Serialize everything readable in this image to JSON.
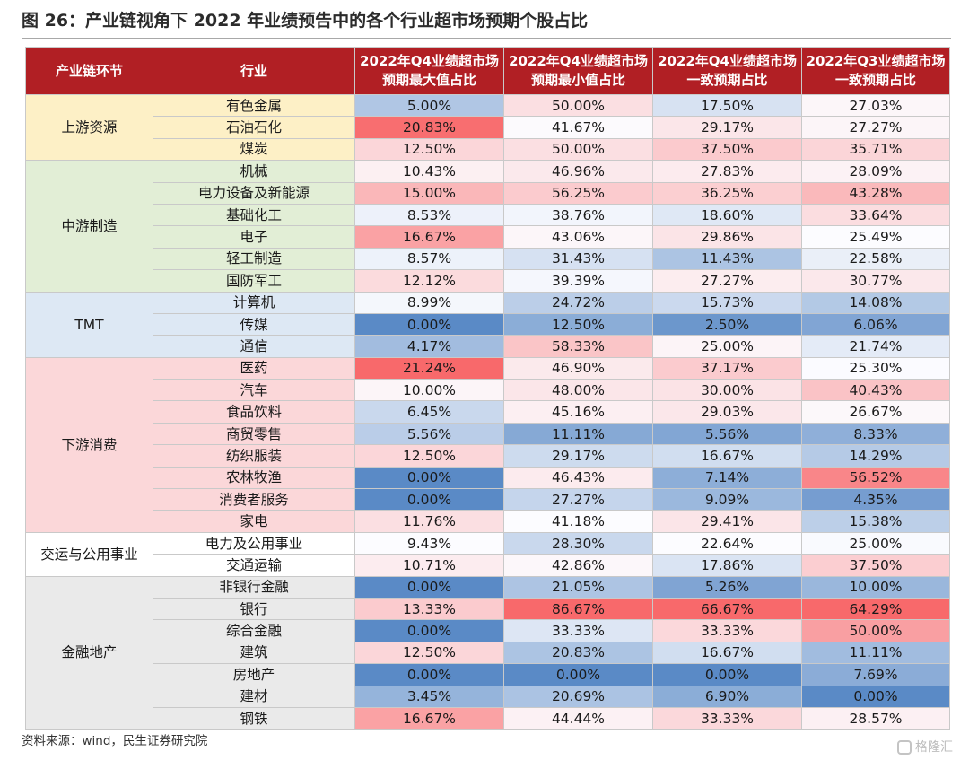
{
  "title": "图 26：产业链视角下 2022 年业绩预告中的各个行业超市场预期个股占比",
  "headers": {
    "chain": "产业链环节",
    "industry": "行业",
    "c1": "2022年Q4业绩超市场预期最大值占比",
    "c2": "2022年Q4业绩超市场预期最小值占比",
    "c3": "2022年Q4业绩超市场一致预期占比",
    "c4": "2022年Q3业绩超市场一致预期占比"
  },
  "segment_colors": {
    "上游资源": "#fdf0c6",
    "中游制造": "#e2eed6",
    "TMT": "#dde8f4",
    "下游消费": "#fbd7d9",
    "交运与公用事业": "#ffffff",
    "金融地产": "#eaeaea"
  },
  "segments": [
    {
      "name": "上游资源",
      "rows": [
        {
          "industry": "有色金属",
          "c1": "5.00%",
          "c2": "50.00%",
          "c3": "17.50%",
          "c4": "27.03%"
        },
        {
          "industry": "石油石化",
          "c1": "20.83%",
          "c2": "41.67%",
          "c3": "29.17%",
          "c4": "27.27%"
        },
        {
          "industry": "煤炭",
          "c1": "12.50%",
          "c2": "50.00%",
          "c3": "37.50%",
          "c4": "35.71%"
        }
      ]
    },
    {
      "name": "中游制造",
      "rows": [
        {
          "industry": "机械",
          "c1": "10.43%",
          "c2": "46.96%",
          "c3": "27.83%",
          "c4": "28.09%"
        },
        {
          "industry": "电力设备及新能源",
          "c1": "15.00%",
          "c2": "56.25%",
          "c3": "36.25%",
          "c4": "43.28%"
        },
        {
          "industry": "基础化工",
          "c1": "8.53%",
          "c2": "38.76%",
          "c3": "18.60%",
          "c4": "33.64%"
        },
        {
          "industry": "电子",
          "c1": "16.67%",
          "c2": "43.06%",
          "c3": "29.86%",
          "c4": "25.49%"
        },
        {
          "industry": "轻工制造",
          "c1": "8.57%",
          "c2": "31.43%",
          "c3": "11.43%",
          "c4": "22.58%"
        },
        {
          "industry": "国防军工",
          "c1": "12.12%",
          "c2": "39.39%",
          "c3": "27.27%",
          "c4": "30.77%"
        }
      ]
    },
    {
      "name": "TMT",
      "rows": [
        {
          "industry": "计算机",
          "c1": "8.99%",
          "c2": "24.72%",
          "c3": "15.73%",
          "c4": "14.08%"
        },
        {
          "industry": "传媒",
          "c1": "0.00%",
          "c2": "12.50%",
          "c3": "2.50%",
          "c4": "6.06%"
        },
        {
          "industry": "通信",
          "c1": "4.17%",
          "c2": "58.33%",
          "c3": "25.00%",
          "c4": "21.74%"
        }
      ]
    },
    {
      "name": "下游消费",
      "rows": [
        {
          "industry": "医药",
          "c1": "21.24%",
          "c2": "46.90%",
          "c3": "37.17%",
          "c4": "25.30%"
        },
        {
          "industry": "汽车",
          "c1": "10.00%",
          "c2": "48.00%",
          "c3": "30.00%",
          "c4": "40.43%"
        },
        {
          "industry": "食品饮料",
          "c1": "6.45%",
          "c2": "45.16%",
          "c3": "29.03%",
          "c4": "26.67%"
        },
        {
          "industry": "商贸零售",
          "c1": "5.56%",
          "c2": "11.11%",
          "c3": "5.56%",
          "c4": "8.33%"
        },
        {
          "industry": "纺织服装",
          "c1": "12.50%",
          "c2": "29.17%",
          "c3": "16.67%",
          "c4": "14.29%"
        },
        {
          "industry": "农林牧渔",
          "c1": "0.00%",
          "c2": "46.43%",
          "c3": "7.14%",
          "c4": "56.52%"
        },
        {
          "industry": "消费者服务",
          "c1": "0.00%",
          "c2": "27.27%",
          "c3": "9.09%",
          "c4": "4.35%"
        },
        {
          "industry": "家电",
          "c1": "11.76%",
          "c2": "41.18%",
          "c3": "29.41%",
          "c4": "15.38%"
        }
      ]
    },
    {
      "name": "交运与公用事业",
      "rows": [
        {
          "industry": "电力及公用事业",
          "c1": "9.43%",
          "c2": "28.30%",
          "c3": "22.64%",
          "c4": "25.00%"
        },
        {
          "industry": "交通运输",
          "c1": "10.71%",
          "c2": "42.86%",
          "c3": "17.86%",
          "c4": "37.50%"
        }
      ]
    },
    {
      "name": "金融地产",
      "rows": [
        {
          "industry": "非银行金融",
          "c1": "0.00%",
          "c2": "21.05%",
          "c3": "5.26%",
          "c4": "10.00%"
        },
        {
          "industry": "银行",
          "c1": "13.33%",
          "c2": "86.67%",
          "c3": "66.67%",
          "c4": "64.29%"
        },
        {
          "industry": "综合金融",
          "c1": "0.00%",
          "c2": "33.33%",
          "c3": "33.33%",
          "c4": "50.00%"
        },
        {
          "industry": "建筑",
          "c1": "12.50%",
          "c2": "20.83%",
          "c3": "16.67%",
          "c4": "11.11%"
        },
        {
          "industry": "房地产",
          "c1": "0.00%",
          "c2": "0.00%",
          "c3": "0.00%",
          "c4": "7.69%"
        },
        {
          "industry": "建材",
          "c1": "3.45%",
          "c2": "20.69%",
          "c3": "6.90%",
          "c4": "0.00%"
        },
        {
          "industry": "钢铁",
          "c1": "16.67%",
          "c2": "44.44%",
          "c3": "33.33%",
          "c4": "28.57%"
        }
      ]
    }
  ],
  "heatmap_colors": {
    "low": "#5a8ac6",
    "mid": "#fcfcff",
    "high": "#f8696b"
  },
  "source": "资料来源：wind，民生证券研究院",
  "watermark": "格隆汇"
}
